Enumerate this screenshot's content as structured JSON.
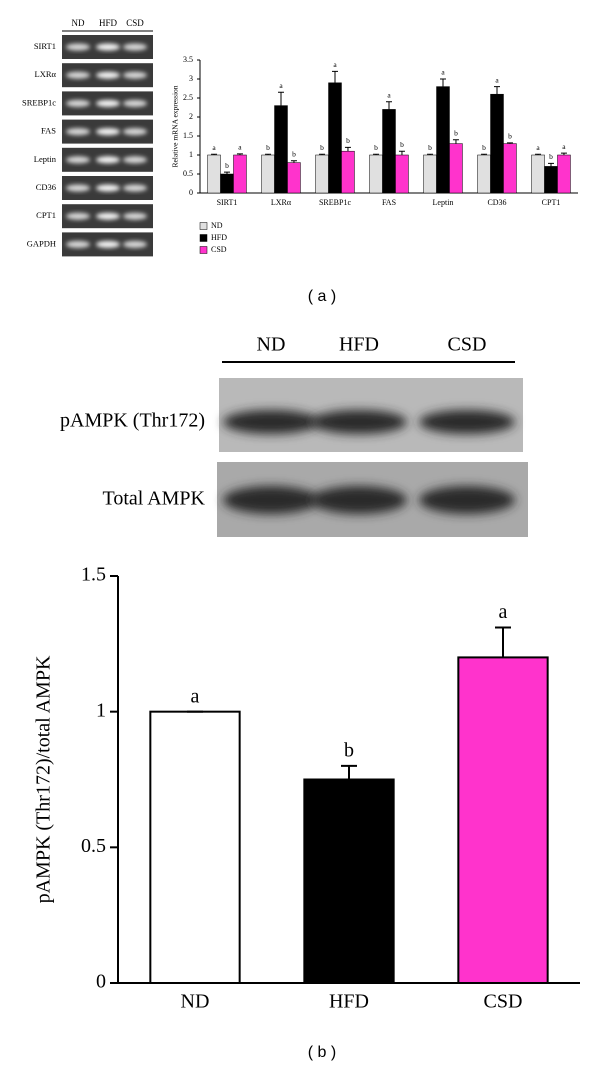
{
  "gel_a": {
    "lanes": [
      "ND",
      "HFD",
      "CSD"
    ],
    "genes": [
      "SIRT1",
      "LXRα",
      "SREBP1c",
      "FAS",
      "Leptin",
      "CD36",
      "CPT1",
      "GAPDH"
    ]
  },
  "blot_b": {
    "lanes": [
      "ND",
      "HFD",
      "CSD"
    ],
    "rows": [
      "pAMPK (Thr172)",
      "Total AMPK"
    ]
  },
  "panel_labels": [
    "( a )",
    "( b )"
  ],
  "chart_data": [
    {
      "type": "bar",
      "y_label": "Relative mRNA expression",
      "categories": [
        "SIRT1",
        "LXRα",
        "SREBP1c",
        "FAS",
        "Leptin",
        "CD36",
        "CPT1"
      ],
      "series": [
        {
          "name": "ND",
          "color": "#e0e0e0",
          "values": [
            1,
            1,
            1,
            1,
            1,
            1,
            1
          ],
          "errors": [
            0.02,
            0.02,
            0.02,
            0.02,
            0.02,
            0.02,
            0.02
          ],
          "letters": [
            "a",
            "b",
            "b",
            "b",
            "b",
            "b",
            "a"
          ]
        },
        {
          "name": "HFD",
          "color": "#000000",
          "values": [
            0.5,
            2.3,
            2.9,
            2.2,
            2.8,
            2.6,
            0.7
          ],
          "errors": [
            0.05,
            0.35,
            0.3,
            0.2,
            0.2,
            0.2,
            0.08
          ],
          "letters": [
            "b",
            "a",
            "a",
            "a",
            "a",
            "a",
            "b"
          ]
        },
        {
          "name": "CSD",
          "color": "#ff33cc",
          "values": [
            1,
            0.8,
            1.1,
            1,
            1.3,
            1.3,
            1
          ],
          "errors": [
            0.03,
            0.05,
            0.1,
            0.1,
            0.1,
            0.02,
            0.05
          ],
          "letters": [
            "a",
            "b",
            "b",
            "b",
            "b",
            "b",
            "a"
          ]
        }
      ],
      "ylim": [
        0,
        3.5
      ],
      "yticks": [
        0,
        0.5,
        1,
        1.5,
        2,
        2.5,
        3,
        3.5
      ],
      "legend": "bottom-left"
    },
    {
      "type": "bar",
      "y_label": "pAMPK (Thr172)/total AMPK",
      "categories": [
        "ND",
        "HFD",
        "CSD"
      ],
      "values": [
        1,
        0.75,
        1.2
      ],
      "errors": [
        0,
        0.05,
        0.11
      ],
      "letters": [
        "a",
        "b",
        "a"
      ],
      "colors": [
        "#ffffff",
        "#000000",
        "#ff33cc"
      ],
      "ylim": [
        0,
        1.5
      ],
      "yticks": [
        0,
        0.5,
        1,
        1.5
      ]
    }
  ]
}
